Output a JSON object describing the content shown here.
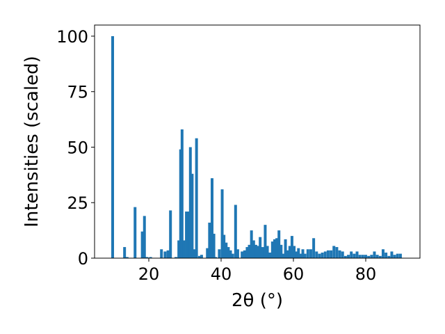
{
  "chart_data": {
    "type": "bar",
    "xlabel": "2θ (°)",
    "ylabel": "Intensities (scaled)",
    "xlim": [
      5,
      95
    ],
    "ylim": [
      0,
      105
    ],
    "xticks": [
      20,
      40,
      60,
      80
    ],
    "yticks": [
      0,
      25,
      50,
      75,
      100
    ],
    "bar_color": "#1f77b4",
    "x": [
      10.0,
      13.3,
      14.0,
      16.2,
      18.2,
      18.8,
      19.5,
      20.5,
      23.5,
      24.5,
      25.3,
      26.0,
      27.5,
      28.3,
      28.8,
      29.2,
      29.7,
      30.4,
      31.0,
      31.5,
      32.0,
      32.6,
      33.2,
      34.0,
      34.6,
      36.2,
      36.8,
      37.5,
      38.0,
      38.5,
      39.5,
      40.3,
      40.8,
      41.4,
      42.0,
      42.6,
      43.2,
      44.0,
      44.6,
      45.8,
      46.5,
      47.2,
      47.8,
      48.4,
      49.0,
      49.6,
      50.2,
      50.8,
      51.5,
      52.2,
      52.8,
      53.5,
      54.2,
      54.8,
      55.4,
      56.0,
      56.6,
      57.2,
      57.8,
      58.4,
      59.0,
      59.6,
      60.2,
      60.8,
      61.4,
      62.0,
      62.6,
      63.2,
      64.0,
      64.8,
      65.6,
      66.4,
      67.2,
      68.0,
      68.8,
      69.6,
      70.4,
      71.2,
      72.0,
      72.8,
      73.6,
      74.4,
      75.2,
      76.0,
      76.8,
      77.6,
      78.4,
      79.2,
      80.0,
      80.8,
      81.6,
      82.4,
      83.2,
      84.0,
      84.8,
      85.6,
      86.4,
      87.2,
      88.0,
      88.8,
      89.6
    ],
    "values": [
      100,
      5,
      0.5,
      23,
      12,
      19,
      0.5,
      0.5,
      4,
      3,
      3.5,
      21.5,
      0.5,
      8,
      49,
      58,
      8,
      21,
      21,
      50,
      38,
      4,
      54,
      1,
      1.5,
      4.5,
      16,
      36,
      11,
      0.5,
      4,
      31,
      10.5,
      7,
      5,
      3.5,
      2,
      24,
      4,
      3,
      3.5,
      5,
      6,
      12.5,
      8,
      6,
      5.5,
      9.5,
      5,
      15,
      5.5,
      2.5,
      7.5,
      8.5,
      9,
      12.5,
      6,
      2,
      8.5,
      3.5,
      5.5,
      10,
      5.5,
      3,
      4.5,
      2,
      4,
      2,
      4,
      4,
      9,
      3,
      2,
      2.5,
      3,
      3.5,
      3.5,
      5.5,
      5,
      3.5,
      3,
      1,
      1.5,
      3,
      2,
      3,
      1.5,
      1.5,
      1.5,
      1,
      1.5,
      3,
      1.5,
      1,
      4,
      2.5,
      1,
      3,
      1.5,
      2,
      2
    ]
  }
}
